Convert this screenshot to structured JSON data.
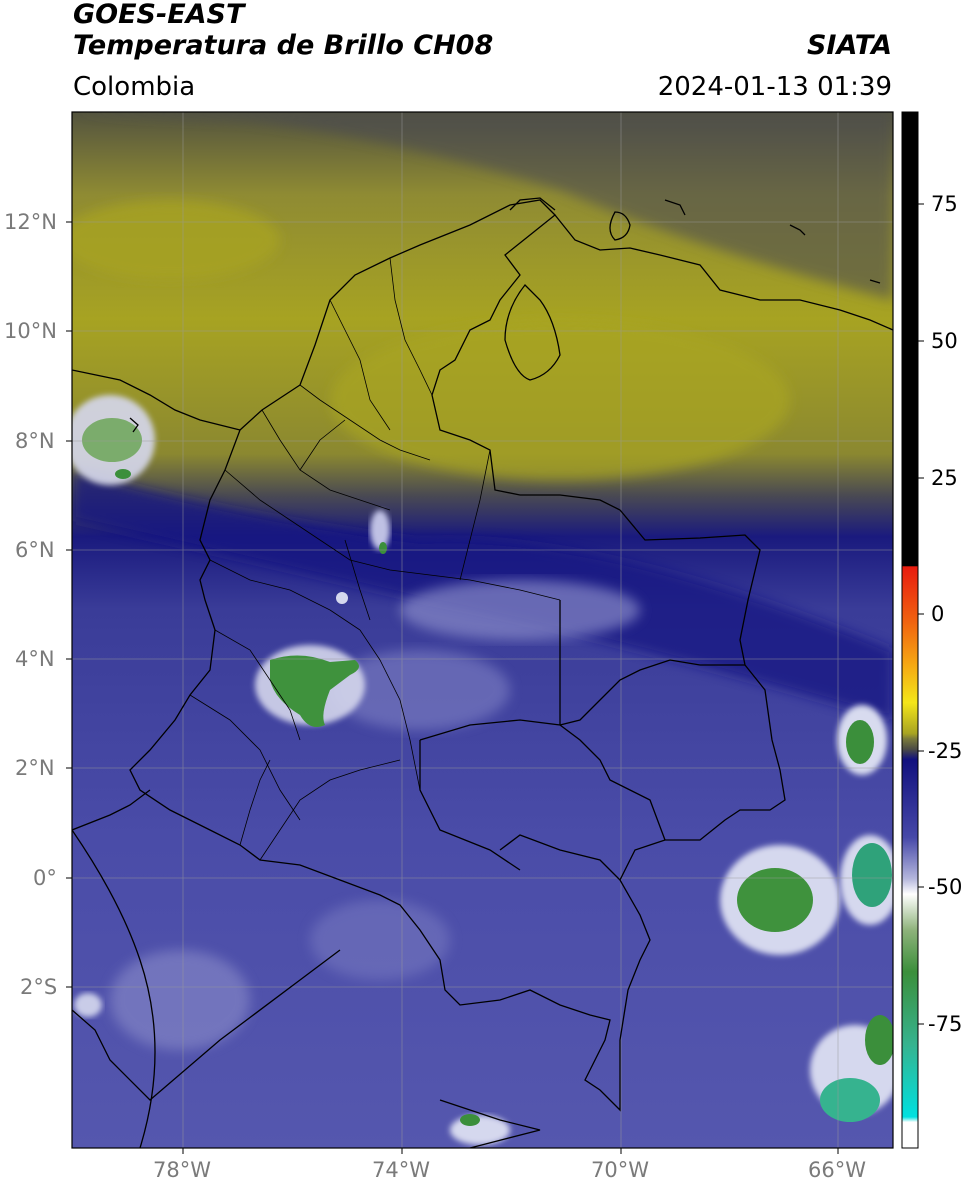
{
  "header": {
    "satellite": "GOES-EAST",
    "product": "Temperatura de Brillo CH08",
    "region": "Colombia",
    "agency": "SIATA",
    "datetime": "2024-01-13 01:39"
  },
  "map": {
    "lon_range": [
      -80,
      -65
    ],
    "lat_range": [
      -5,
      14
    ],
    "lat_ticks": [
      "12°N",
      "10°N",
      "8°N",
      "6°N",
      "4°N",
      "2°N",
      "0°",
      "2°S"
    ],
    "lon_ticks": [
      "78°W",
      "74°W",
      "70°W",
      "66°W"
    ],
    "gridlines": true
  },
  "colorbar": {
    "ticks": [
      "75",
      "50",
      "25",
      "0",
      "-25",
      "-50",
      "-75"
    ],
    "range": [
      -95,
      90
    ],
    "colors": {
      "warm_black": "#000000",
      "red": "#e81b0e",
      "orange": "#f58a12",
      "yellow": "#f4e61a",
      "olive": "#a7a322",
      "dark_olive": "#4b4b45",
      "navy": "#11107e",
      "blue": "#4648a8",
      "lavender": "#b4b6dc",
      "white": "#ffffff",
      "green": "#3b8f3b",
      "teal": "#36b38f",
      "cyan": "#00e0e0"
    }
  }
}
